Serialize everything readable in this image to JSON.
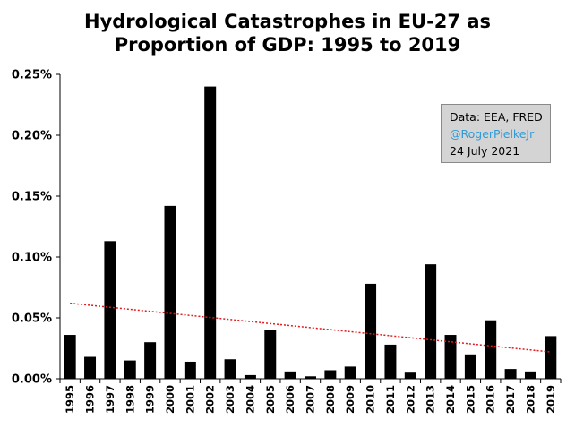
{
  "chart_data": {
    "type": "bar",
    "title_lines": [
      "Hydrological Catastrophes in EU-27 as",
      "Proportion of GDP: 1995 to 2019"
    ],
    "categories": [
      "1995",
      "1996",
      "1997",
      "1998",
      "1999",
      "2000",
      "2001",
      "2002",
      "2003",
      "2004",
      "2005",
      "2006",
      "2007",
      "2008",
      "2009",
      "2010",
      "2011",
      "2012",
      "2013",
      "2014",
      "2015",
      "2016",
      "2017",
      "2018",
      "2019"
    ],
    "values": [
      0.036,
      0.018,
      0.113,
      0.015,
      0.03,
      0.142,
      0.014,
      0.24,
      0.016,
      0.003,
      0.04,
      0.006,
      0.002,
      0.007,
      0.01,
      0.078,
      0.028,
      0.005,
      0.094,
      0.036,
      0.02,
      0.048,
      0.008,
      0.006,
      0.035
    ],
    "value_unit": "percent of GDP",
    "ylim": [
      0,
      0.25
    ],
    "yticks": [
      0,
      0.05,
      0.1,
      0.15,
      0.2,
      0.25
    ],
    "ytick_labels": [
      "0.00%",
      "0.05%",
      "0.10%",
      "0.15%",
      "0.20%",
      "0.25%"
    ],
    "xlabel": "",
    "ylabel": "",
    "grid": false,
    "legend": null,
    "trendline": {
      "style": "dotted",
      "color": "#e41a1c",
      "start_value": 0.062,
      "end_value": 0.022
    },
    "bar_color": "#000000"
  },
  "annotation": {
    "source": "Data: EEA, FRED",
    "handle": "@RogerPielkeJr",
    "date": "24 July 2021",
    "box_color": "#d4d4d4",
    "handle_color": "#2e9bd8"
  }
}
